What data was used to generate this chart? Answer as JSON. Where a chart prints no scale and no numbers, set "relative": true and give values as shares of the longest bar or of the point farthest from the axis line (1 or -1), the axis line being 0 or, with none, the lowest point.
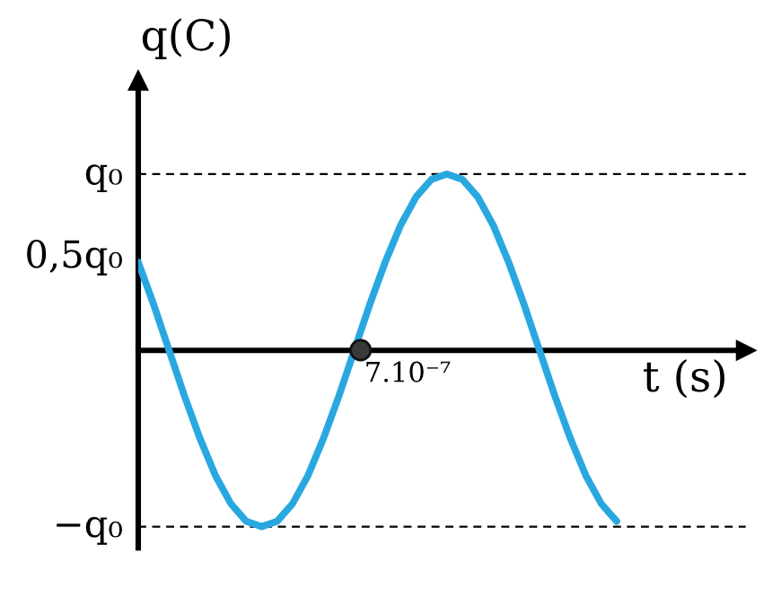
{
  "chart_data": {
    "type": "line",
    "relative": true,
    "xlabel": "t (s)",
    "ylabel": "q(C)",
    "categories": [
      null,
      null,
      null,
      null,
      null,
      null,
      null,
      null,
      null,
      null,
      null,
      null,
      null,
      null,
      null,
      null,
      null,
      null,
      null,
      null,
      null,
      null,
      null,
      null,
      null,
      null,
      null,
      null,
      null,
      null,
      null,
      null
    ],
    "series": [
      {
        "color": "#29a8e0",
        "values": [
          0.5,
          0.26,
          0,
          -0.26,
          -0.5,
          -0.71,
          -0.87,
          -0.97,
          -1,
          -0.97,
          -0.87,
          -0.71,
          -0.5,
          -0.26,
          0,
          0.26,
          0.5,
          0.71,
          0.87,
          0.97,
          1,
          0.97,
          0.87,
          0.71,
          0.5,
          0.26,
          0,
          -0.26,
          -0.5,
          -0.71,
          -0.87,
          -0.97
        ]
      }
    ],
    "annotations": [
      "7.10⁻⁷",
      "0,5q₀"
    ],
    "ref_lines": [
      {
        "axis": "y",
        "value": 1,
        "label": "q₀",
        "color": "#000000",
        "line_style": "dashed"
      },
      {
        "axis": "y",
        "value": -1,
        "label": "−q₀",
        "color": "#000000",
        "line_style": "dashed"
      }
    ],
    "legend": false,
    "marker": "none",
    "line_style": "solid"
  }
}
